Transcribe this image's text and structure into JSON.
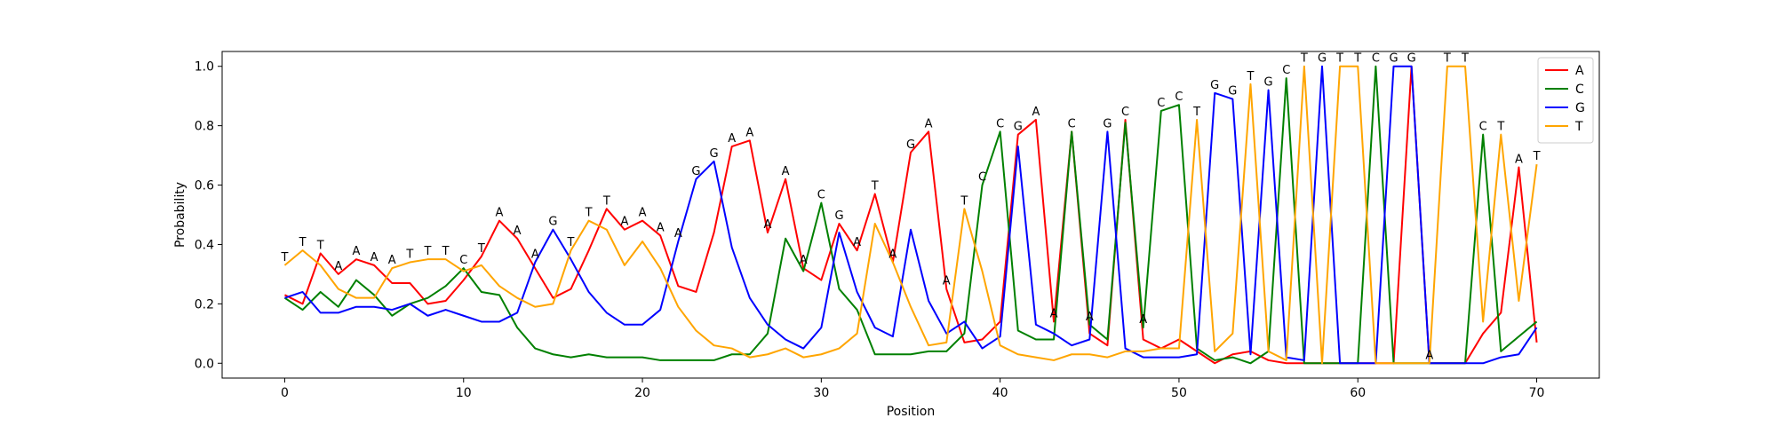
{
  "chart_data": {
    "type": "line",
    "title": "",
    "xlabel": "Position",
    "ylabel": "Probability",
    "xlim": [
      -3.5,
      73.5
    ],
    "ylim": [
      -0.05,
      1.05
    ],
    "x_ticks": [
      0,
      10,
      20,
      30,
      40,
      50,
      60,
      70
    ],
    "y_ticks": [
      0.0,
      0.2,
      0.4,
      0.6,
      0.8,
      1.0
    ],
    "x_tick_labels": [
      "0",
      "10",
      "20",
      "30",
      "40",
      "50",
      "60",
      "70"
    ],
    "y_tick_labels": [
      "0.0",
      "0.2",
      "0.4",
      "0.6",
      "0.8",
      "1.0"
    ],
    "grid": false,
    "legend_position": "top-right",
    "x": [
      0,
      1,
      2,
      3,
      4,
      5,
      6,
      7,
      8,
      9,
      10,
      11,
      12,
      13,
      14,
      15,
      16,
      17,
      18,
      19,
      20,
      21,
      22,
      23,
      24,
      25,
      26,
      27,
      28,
      29,
      30,
      31,
      32,
      33,
      34,
      35,
      36,
      37,
      38,
      39,
      40,
      41,
      42,
      43,
      44,
      45,
      46,
      47,
      48,
      49,
      50,
      51,
      52,
      53,
      54,
      55,
      56,
      57,
      58,
      59,
      60,
      61,
      62,
      63,
      64,
      65,
      66,
      67,
      68,
      69,
      70
    ],
    "series": [
      {
        "name": "A",
        "color": "#ff0000",
        "values": [
          0.23,
          0.2,
          0.37,
          0.3,
          0.35,
          0.33,
          0.27,
          0.27,
          0.2,
          0.21,
          0.28,
          0.36,
          0.48,
          0.42,
          0.32,
          0.22,
          0.25,
          0.38,
          0.52,
          0.45,
          0.48,
          0.43,
          0.26,
          0.24,
          0.44,
          0.73,
          0.75,
          0.44,
          0.62,
          0.32,
          0.28,
          0.47,
          0.38,
          0.57,
          0.34,
          0.71,
          0.78,
          0.25,
          0.07,
          0.08,
          0.14,
          0.77,
          0.82,
          0.14,
          0.78,
          0.1,
          0.06,
          0.82,
          0.08,
          0.05,
          0.08,
          0.04,
          0.0,
          0.03,
          0.04,
          0.01,
          0.0,
          0.0,
          0.0,
          0.0,
          0.0,
          0.0,
          0.0,
          1.0,
          0.0,
          0.0,
          0.0,
          0.1,
          0.17,
          0.66,
          0.07
        ]
      },
      {
        "name": "C",
        "color": "#008000",
        "values": [
          0.22,
          0.18,
          0.24,
          0.19,
          0.28,
          0.23,
          0.16,
          0.2,
          0.22,
          0.26,
          0.32,
          0.24,
          0.23,
          0.12,
          0.05,
          0.03,
          0.02,
          0.03,
          0.02,
          0.02,
          0.02,
          0.01,
          0.01,
          0.01,
          0.01,
          0.03,
          0.03,
          0.1,
          0.42,
          0.31,
          0.54,
          0.25,
          0.18,
          0.03,
          0.03,
          0.03,
          0.04,
          0.04,
          0.1,
          0.6,
          0.78,
          0.11,
          0.08,
          0.08,
          0.78,
          0.13,
          0.08,
          0.81,
          0.12,
          0.85,
          0.87,
          0.05,
          0.01,
          0.02,
          0.0,
          0.04,
          0.96,
          0.0,
          0.0,
          0.0,
          0.0,
          1.0,
          0.0,
          0.0,
          0.0,
          0.0,
          0.0,
          0.77,
          0.04,
          0.09,
          0.14
        ]
      },
      {
        "name": "G",
        "color": "#0000ff",
        "values": [
          0.22,
          0.24,
          0.17,
          0.17,
          0.19,
          0.19,
          0.18,
          0.2,
          0.16,
          0.18,
          0.16,
          0.14,
          0.14,
          0.17,
          0.34,
          0.45,
          0.35,
          0.24,
          0.17,
          0.13,
          0.13,
          0.18,
          0.41,
          0.62,
          0.68,
          0.39,
          0.22,
          0.13,
          0.08,
          0.05,
          0.12,
          0.44,
          0.24,
          0.12,
          0.09,
          0.45,
          0.21,
          0.1,
          0.14,
          0.05,
          0.09,
          0.73,
          0.13,
          0.1,
          0.06,
          0.08,
          0.78,
          0.05,
          0.02,
          0.02,
          0.02,
          0.03,
          0.91,
          0.89,
          0.03,
          0.92,
          0.02,
          0.01,
          1.0,
          0.0,
          0.0,
          0.0,
          1.0,
          1.0,
          0.0,
          0.0,
          0.0,
          0.0,
          0.02,
          0.03,
          0.12
        ]
      },
      {
        "name": "T",
        "color": "#ffa500",
        "values": [
          0.33,
          0.38,
          0.33,
          0.25,
          0.22,
          0.22,
          0.32,
          0.34,
          0.35,
          0.35,
          0.31,
          0.33,
          0.26,
          0.22,
          0.19,
          0.2,
          0.38,
          0.48,
          0.45,
          0.33,
          0.41,
          0.32,
          0.19,
          0.11,
          0.06,
          0.05,
          0.02,
          0.03,
          0.05,
          0.02,
          0.03,
          0.05,
          0.1,
          0.47,
          0.34,
          0.19,
          0.06,
          0.07,
          0.52,
          0.31,
          0.06,
          0.03,
          0.02,
          0.01,
          0.03,
          0.03,
          0.02,
          0.04,
          0.04,
          0.05,
          0.05,
          0.82,
          0.04,
          0.1,
          0.94,
          0.04,
          0.01,
          1.0,
          0.0,
          1.0,
          1.0,
          0.0,
          0.0,
          0.0,
          0.0,
          1.0,
          1.0,
          0.14,
          0.77,
          0.21,
          0.67
        ]
      }
    ],
    "annotations": [
      "T",
      "T",
      "T",
      "A",
      "A",
      "A",
      "A",
      "T",
      "T",
      "T",
      "C",
      "T",
      "A",
      "A",
      "A",
      "G",
      "T",
      "T",
      "T",
      "A",
      "A",
      "A",
      "A",
      "G",
      "G",
      "A",
      "A",
      "A",
      "A",
      "A",
      "C",
      "G",
      "A",
      "T",
      "A",
      "G",
      "A",
      "A",
      "T",
      "C",
      "C",
      "G",
      "A",
      "A",
      "C",
      "A",
      "G",
      "C",
      "A",
      "C",
      "C",
      "T",
      "G",
      "G",
      "T",
      "G",
      "C",
      "T",
      "G",
      "T",
      "T",
      "C",
      "G",
      "G",
      "A",
      "T",
      "T",
      "C",
      "T",
      "A",
      "T"
    ]
  }
}
